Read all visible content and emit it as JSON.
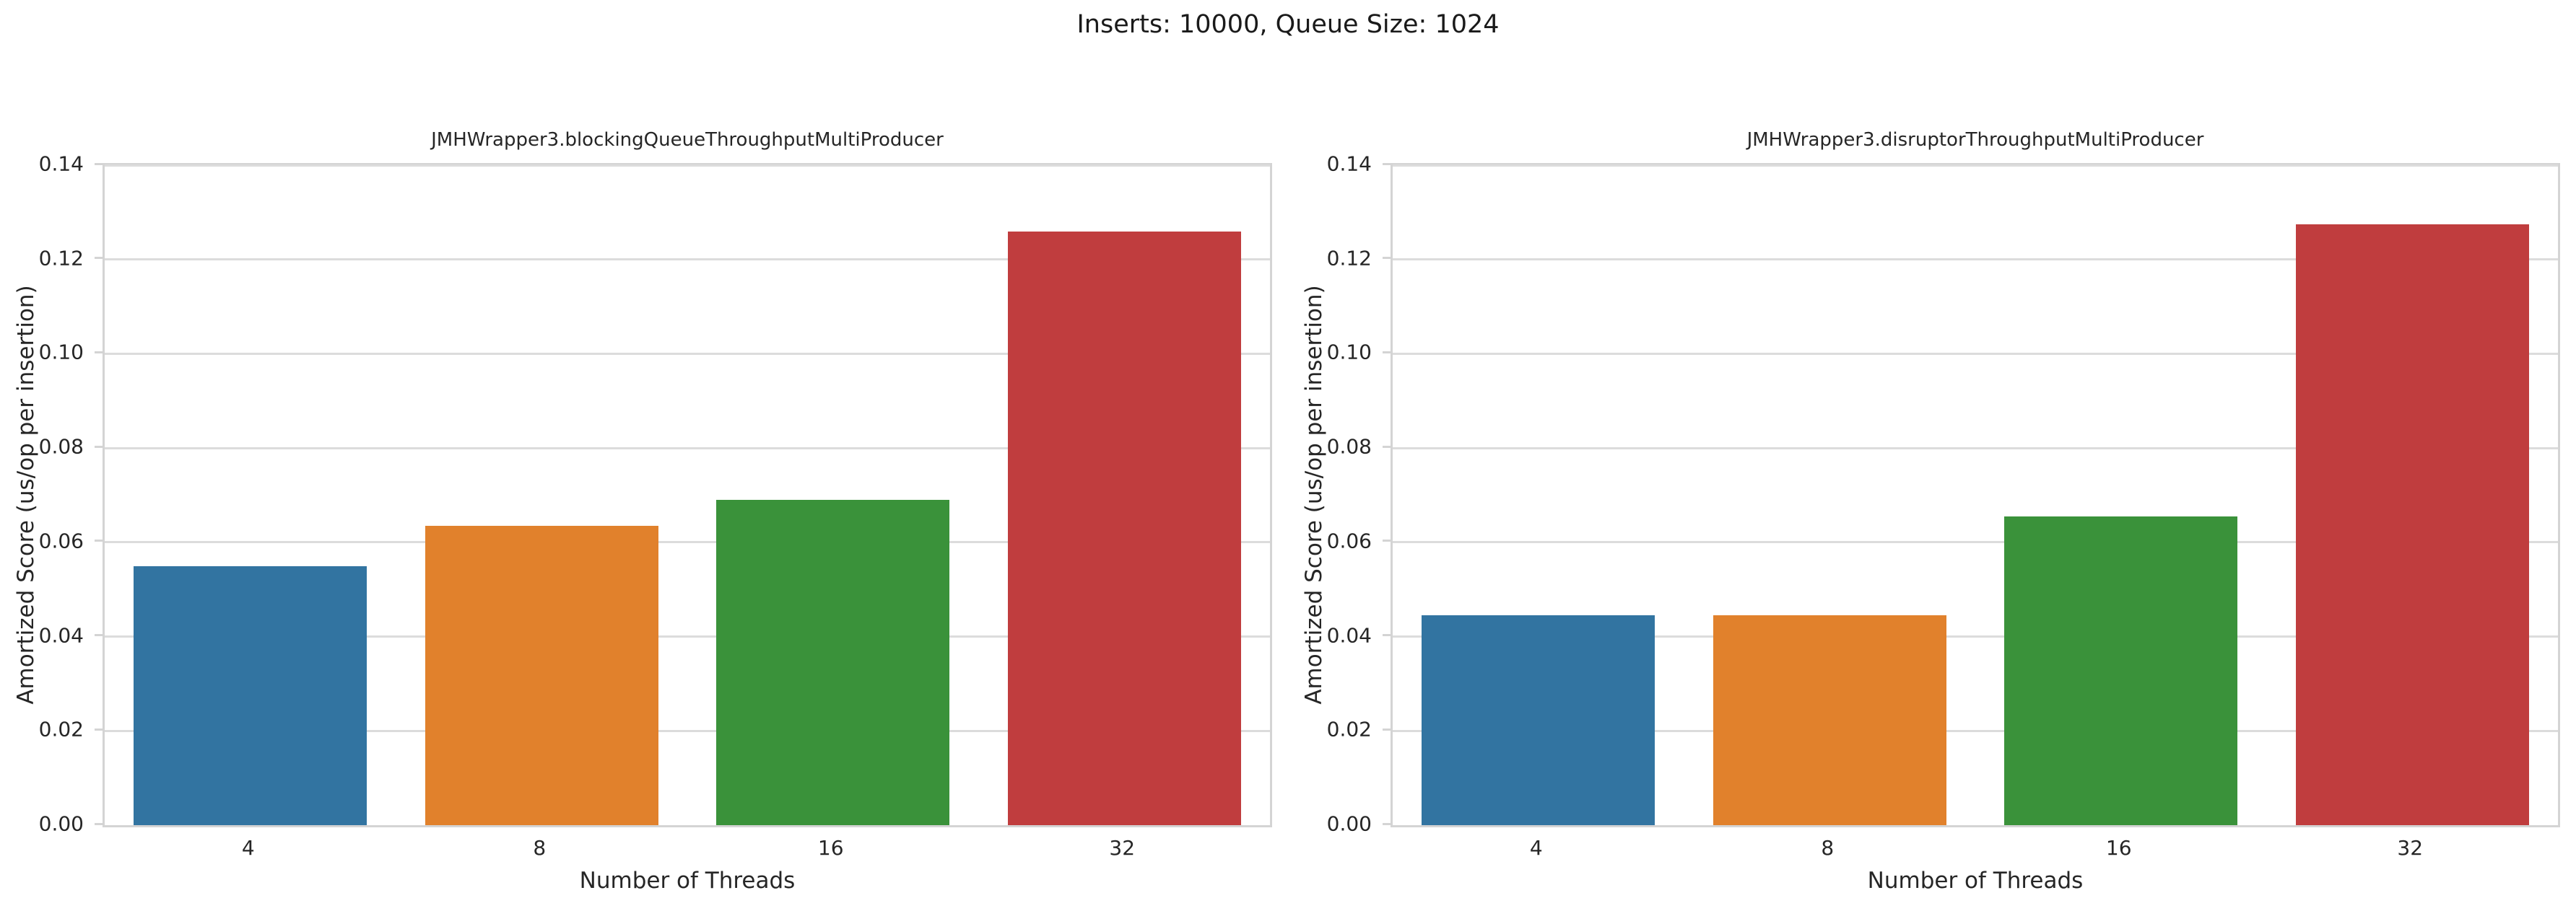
{
  "figure_title": "Inserts: 10000, Queue Size: 1024",
  "style": {
    "grid_color": "#dcdcdc",
    "spine_color": "#d4d4d4",
    "text_color": "#262626",
    "background": "#ffffff"
  },
  "chart_data": [
    {
      "type": "bar",
      "title": "JMHWrapper3.blockingQueueThroughputMultiProducer",
      "categories": [
        "4",
        "8",
        "16",
        "32"
      ],
      "values": [
        0.055,
        0.0635,
        0.069,
        0.126
      ],
      "bar_colors": [
        "#3274a1",
        "#e1812c",
        "#3a923a",
        "#c03d3e"
      ],
      "xlabel": "Number of Threads",
      "ylabel": "Amortized Score (us/op per insertion)",
      "ylim": [
        0,
        0.14
      ],
      "ytick_step": 0.02,
      "ytick_decimals": 2,
      "grid": true,
      "legend": false
    },
    {
      "type": "bar",
      "title": "JMHWrapper3.disruptorThroughputMultiProducer",
      "categories": [
        "4",
        "8",
        "16",
        "32"
      ],
      "values": [
        0.0445,
        0.0445,
        0.0655,
        0.1275
      ],
      "bar_colors": [
        "#3274a1",
        "#e1812c",
        "#3a923a",
        "#c03d3e"
      ],
      "xlabel": "Number of Threads",
      "ylabel": "Amortized Score (us/op per insertion)",
      "ylim": [
        0,
        0.14
      ],
      "ytick_step": 0.02,
      "ytick_decimals": 2,
      "grid": true,
      "legend": false
    }
  ]
}
